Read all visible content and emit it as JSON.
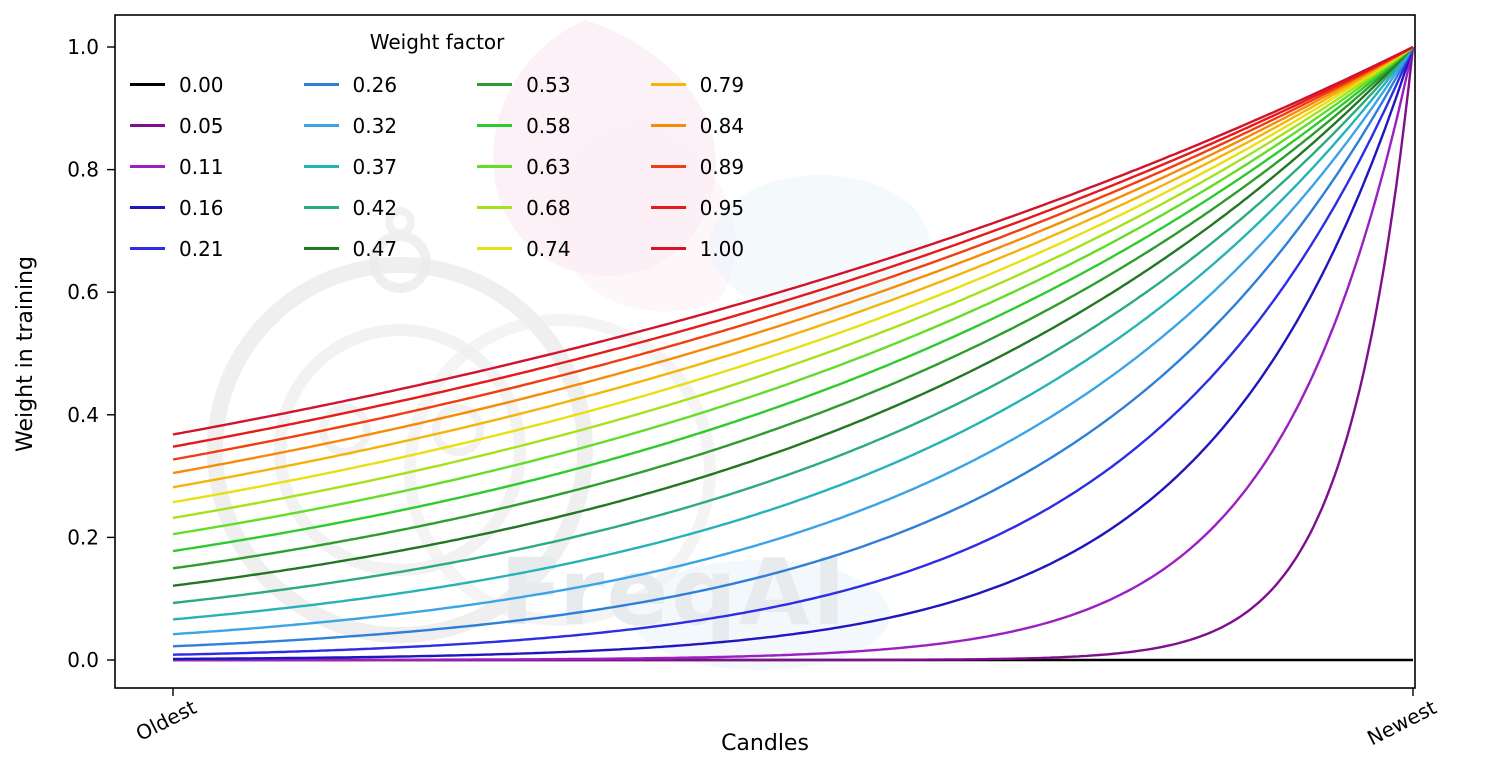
{
  "chart_data": {
    "type": "line",
    "title": "",
    "xlabel": "Candles",
    "ylabel": "Weight in training",
    "legend_title": "Weight factor",
    "legend_position": "upper left",
    "legend_columns": 4,
    "grid": false,
    "xlim": [
      0,
      1
    ],
    "ylim": [
      0,
      1.0
    ],
    "x_ticks": [
      {
        "label": "Oldest",
        "t": 0
      },
      {
        "label": "Newest",
        "t": 1
      }
    ],
    "y_ticks": [
      {
        "label": "0.0",
        "value": 0.0
      },
      {
        "label": "0.2",
        "value": 0.2
      },
      {
        "label": "0.4",
        "value": 0.4
      },
      {
        "label": "0.6",
        "value": 0.6
      },
      {
        "label": "0.8",
        "value": 0.8
      },
      {
        "label": "1.0",
        "value": 1.0
      }
    ],
    "curve_formula": "weight(t) = exp(-(1 - t) / factor) for factor > 0; factor 0.00 plots as constant 0; t runs from 0 (Oldest) to 1 (Newest); all curves reach 1.0 at Newest",
    "series": [
      {
        "label": "0.00",
        "factor": 0.0,
        "color": "#000000",
        "weight_at_oldest": 0.0
      },
      {
        "label": "0.05",
        "factor": 0.0526,
        "color": "#800f8c",
        "weight_at_oldest": 0.0
      },
      {
        "label": "0.11",
        "factor": 0.1053,
        "color": "#9b1fc1",
        "weight_at_oldest": 0.0001
      },
      {
        "label": "0.16",
        "factor": 0.1579,
        "color": "#1f16be",
        "weight_at_oldest": 0.002
      },
      {
        "label": "0.21",
        "factor": 0.2105,
        "color": "#2d2de6",
        "weight_at_oldest": 0.009
      },
      {
        "label": "0.26",
        "factor": 0.2632,
        "color": "#2e7fd9",
        "weight_at_oldest": 0.022
      },
      {
        "label": "0.32",
        "factor": 0.3158,
        "color": "#3ba4e6",
        "weight_at_oldest": 0.042
      },
      {
        "label": "0.37",
        "factor": 0.3684,
        "color": "#26b3b8",
        "weight_at_oldest": 0.066
      },
      {
        "label": "0.42",
        "factor": 0.4211,
        "color": "#2cab7c",
        "weight_at_oldest": 0.093
      },
      {
        "label": "0.47",
        "factor": 0.4737,
        "color": "#227722",
        "weight_at_oldest": 0.121
      },
      {
        "label": "0.53",
        "factor": 0.5263,
        "color": "#2d9e2d",
        "weight_at_oldest": 0.15
      },
      {
        "label": "0.58",
        "factor": 0.5789,
        "color": "#2ecb2e",
        "weight_at_oldest": 0.178
      },
      {
        "label": "0.63",
        "factor": 0.6316,
        "color": "#63dd28",
        "weight_at_oldest": 0.205
      },
      {
        "label": "0.68",
        "factor": 0.6842,
        "color": "#a4e31c",
        "weight_at_oldest": 0.232
      },
      {
        "label": "0.74",
        "factor": 0.7368,
        "color": "#e8e011",
        "weight_at_oldest": 0.257
      },
      {
        "label": "0.79",
        "factor": 0.7895,
        "color": "#f4b409",
        "weight_at_oldest": 0.282
      },
      {
        "label": "0.84",
        "factor": 0.8421,
        "color": "#f68b08",
        "weight_at_oldest": 0.305
      },
      {
        "label": "0.89",
        "factor": 0.8947,
        "color": "#f23d12",
        "weight_at_oldest": 0.327
      },
      {
        "label": "0.95",
        "factor": 0.9474,
        "color": "#e61a1a",
        "weight_at_oldest": 0.348
      },
      {
        "label": "1.00",
        "factor": 1.0,
        "color": "#d3132e",
        "weight_at_oldest": 0.368
      }
    ],
    "watermark": "FreqAI"
  }
}
